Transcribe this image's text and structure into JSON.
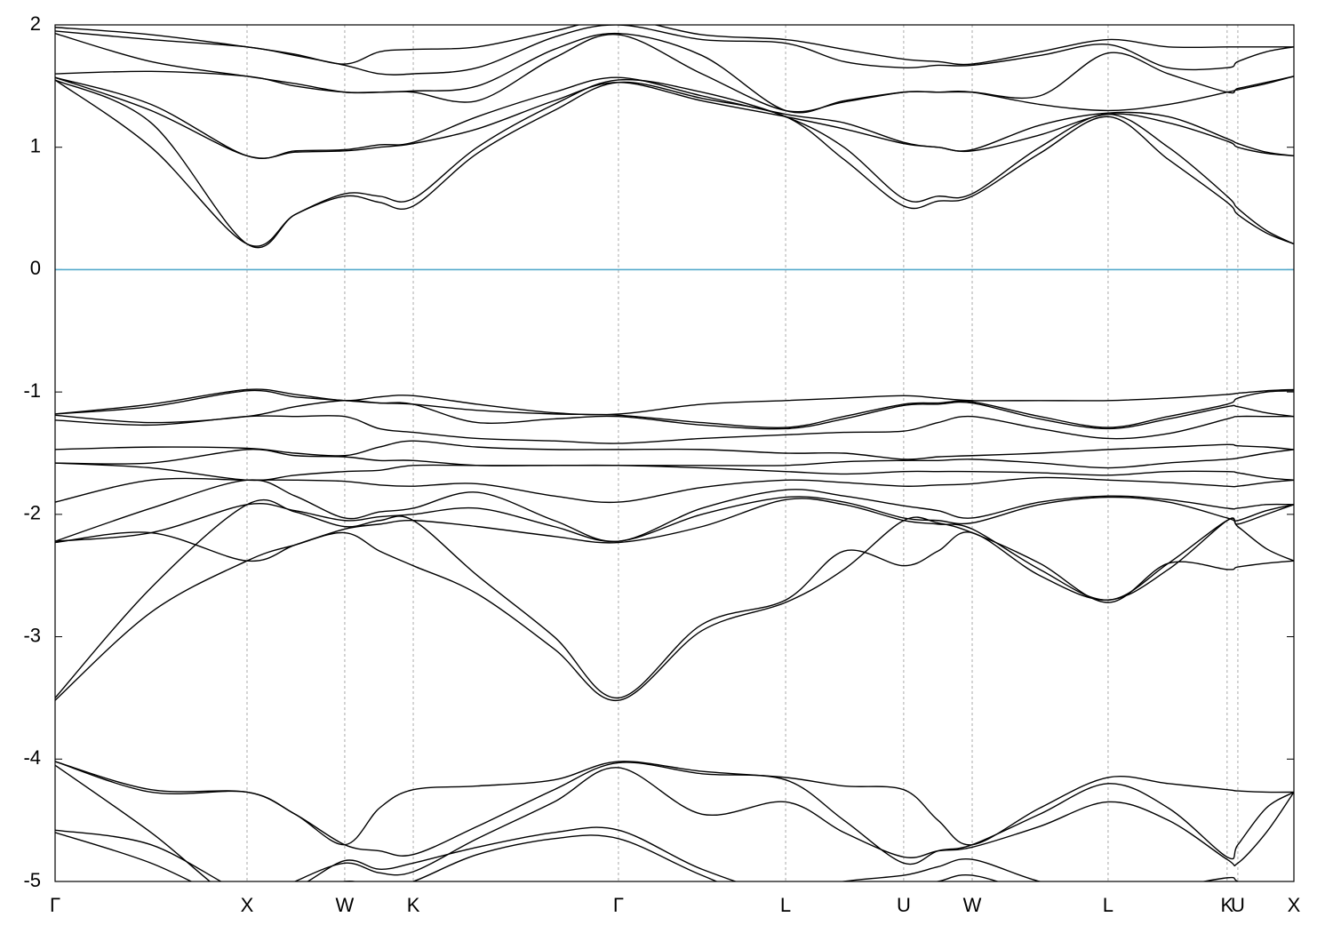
{
  "chart_data": {
    "type": "line",
    "color": "#000000",
    "x": [
      0,
      0.5,
      1.0,
      1.25,
      1.509,
      1.69,
      1.866,
      2.2,
      2.6,
      2.935,
      3.37,
      3.806,
      4.11,
      4.421,
      4.6,
      4.778,
      5.13,
      5.486,
      5.8,
      6.106,
      6.162,
      6.31,
      6.454
    ],
    "xlim": [
      0,
      6.454
    ],
    "xticks": [
      {
        "value": 0,
        "label": "Γ"
      },
      {
        "value": 1.0,
        "label": "X"
      },
      {
        "value": 1.509,
        "label": "W"
      },
      {
        "value": 1.866,
        "label": "K"
      },
      {
        "value": 2.935,
        "label": "Γ"
      },
      {
        "value": 3.806,
        "label": "L"
      },
      {
        "value": 4.421,
        "label": "U"
      },
      {
        "value": 4.778,
        "label": "W"
      },
      {
        "value": 5.486,
        "label": "L"
      },
      {
        "value": 6.106,
        "label": "K"
      },
      {
        "value": 6.162,
        "label": "U"
      },
      {
        "value": 6.454,
        "label": "X"
      }
    ],
    "x_grid": true,
    "ylim": [
      -5,
      2
    ],
    "yticks": [
      -5,
      -4,
      -3,
      -2,
      -1,
      0,
      1,
      2
    ],
    "zero_line": {
      "value": 0,
      "color": "#55aacc"
    },
    "series": [
      {
        "values": [
          1.55,
          1.0,
          0.21,
          0.45,
          0.6,
          0.55,
          0.52,
          0.95,
          1.3,
          1.53,
          1.4,
          1.25,
          0.9,
          0.52,
          0.56,
          0.6,
          0.95,
          1.25,
          0.9,
          0.55,
          0.45,
          0.3,
          0.21
        ]
      },
      {
        "values": [
          1.55,
          1.2,
          0.21,
          0.45,
          0.62,
          0.6,
          0.58,
          1.0,
          1.35,
          1.55,
          1.45,
          1.25,
          1.0,
          0.58,
          0.6,
          0.62,
          1.0,
          1.27,
          1.0,
          0.6,
          0.5,
          0.32,
          0.21
        ]
      },
      {
        "values": [
          1.57,
          1.3,
          0.93,
          0.96,
          0.97,
          1.0,
          1.03,
          1.15,
          1.38,
          1.53,
          1.38,
          1.25,
          1.15,
          1.03,
          1.0,
          0.97,
          1.1,
          1.27,
          1.2,
          1.05,
          1.0,
          0.95,
          0.93
        ]
      },
      {
        "values": [
          1.57,
          1.35,
          0.93,
          0.97,
          0.98,
          1.02,
          1.04,
          1.25,
          1.45,
          1.57,
          1.42,
          1.27,
          1.2,
          1.04,
          1.0,
          0.98,
          1.18,
          1.28,
          1.25,
          1.07,
          1.03,
          0.96,
          0.93
        ]
      },
      {
        "values": [
          1.6,
          1.62,
          1.58,
          1.5,
          1.45,
          1.45,
          1.45,
          1.38,
          1.73,
          1.92,
          1.6,
          1.3,
          1.37,
          1.45,
          1.45,
          1.45,
          1.35,
          1.3,
          1.35,
          1.45,
          1.47,
          1.52,
          1.58
        ]
      },
      {
        "values": [
          1.93,
          1.7,
          1.58,
          1.52,
          1.45,
          1.45,
          1.46,
          1.5,
          1.8,
          1.93,
          1.75,
          1.3,
          1.38,
          1.45,
          1.45,
          1.45,
          1.42,
          1.77,
          1.6,
          1.45,
          1.48,
          1.53,
          1.58
        ]
      },
      {
        "values": [
          1.95,
          1.88,
          1.82,
          1.75,
          1.67,
          1.6,
          1.6,
          1.65,
          1.9,
          2.0,
          1.88,
          1.85,
          1.7,
          1.65,
          1.67,
          1.67,
          1.75,
          1.84,
          1.65,
          1.65,
          1.7,
          1.78,
          1.82
        ]
      },
      {
        "values": [
          1.98,
          1.92,
          1.82,
          1.76,
          1.68,
          1.78,
          1.8,
          1.82,
          1.95,
          2.05,
          1.92,
          1.88,
          1.8,
          1.72,
          1.7,
          1.68,
          1.78,
          1.88,
          1.82,
          1.82,
          1.82,
          1.82,
          1.82
        ]
      },
      {
        "values": [
          -1.18,
          -1.1,
          -0.98,
          -1.02,
          -1.07,
          -1.04,
          -1.03,
          -1.1,
          -1.17,
          -1.18,
          -1.1,
          -1.07,
          -1.05,
          -1.03,
          -1.05,
          -1.07,
          -1.07,
          -1.07,
          -1.05,
          -1.02,
          -1.01,
          -0.99,
          -0.98
        ]
      },
      {
        "values": [
          -1.18,
          -1.12,
          -0.99,
          -1.04,
          -1.07,
          -1.09,
          -1.1,
          -1.15,
          -1.18,
          -1.19,
          -1.25,
          -1.29,
          -1.2,
          -1.1,
          -1.09,
          -1.08,
          -1.2,
          -1.29,
          -1.2,
          -1.1,
          -1.05,
          -1.0,
          -0.99
        ]
      },
      {
        "values": [
          -1.19,
          -1.25,
          -1.2,
          -1.12,
          -1.07,
          -1.09,
          -1.1,
          -1.25,
          -1.22,
          -1.2,
          -1.27,
          -1.3,
          -1.22,
          -1.11,
          -1.1,
          -1.09,
          -1.22,
          -1.3,
          -1.22,
          -1.12,
          -1.12,
          -1.17,
          -1.2
        ]
      },
      {
        "values": [
          -1.23,
          -1.27,
          -1.2,
          -1.2,
          -1.2,
          -1.3,
          -1.33,
          -1.38,
          -1.4,
          -1.42,
          -1.38,
          -1.35,
          -1.33,
          -1.32,
          -1.25,
          -1.2,
          -1.3,
          -1.38,
          -1.34,
          -1.22,
          -1.2,
          -1.2,
          -1.2
        ]
      },
      {
        "values": [
          -1.47,
          -1.45,
          -1.46,
          -1.5,
          -1.52,
          -1.45,
          -1.4,
          -1.45,
          -1.47,
          -1.47,
          -1.47,
          -1.5,
          -1.5,
          -1.55,
          -1.53,
          -1.52,
          -1.5,
          -1.47,
          -1.45,
          -1.43,
          -1.44,
          -1.45,
          -1.47
        ]
      },
      {
        "values": [
          -1.58,
          -1.58,
          -1.47,
          -1.52,
          -1.53,
          -1.56,
          -1.56,
          -1.6,
          -1.6,
          -1.6,
          -1.6,
          -1.6,
          -1.57,
          -1.56,
          -1.56,
          -1.55,
          -1.58,
          -1.62,
          -1.58,
          -1.55,
          -1.54,
          -1.5,
          -1.47
        ]
      },
      {
        "values": [
          -1.58,
          -1.62,
          -1.72,
          -1.68,
          -1.65,
          -1.64,
          -1.6,
          -1.6,
          -1.6,
          -1.6,
          -1.62,
          -1.65,
          -1.67,
          -1.65,
          -1.65,
          -1.65,
          -1.66,
          -1.68,
          -1.65,
          -1.65,
          -1.66,
          -1.7,
          -1.72
        ]
      },
      {
        "values": [
          -1.9,
          -1.72,
          -1.72,
          -1.72,
          -1.73,
          -1.76,
          -1.77,
          -1.75,
          -1.85,
          -1.9,
          -1.78,
          -1.72,
          -1.74,
          -1.77,
          -1.76,
          -1.75,
          -1.7,
          -1.72,
          -1.74,
          -1.77,
          -1.77,
          -1.74,
          -1.72
        ]
      },
      {
        "values": [
          -2.22,
          -1.95,
          -1.72,
          -1.85,
          -2.03,
          -1.98,
          -1.95,
          -1.82,
          -2.05,
          -2.22,
          -1.95,
          -1.8,
          -1.85,
          -1.93,
          -1.97,
          -2.03,
          -1.9,
          -1.85,
          -1.88,
          -1.95,
          -1.95,
          -1.92,
          -1.92
        ]
      },
      {
        "values": [
          -2.22,
          -2.15,
          -1.92,
          -1.97,
          -2.05,
          -2.02,
          -2.0,
          -1.95,
          -2.1,
          -2.22,
          -2.0,
          -1.86,
          -1.9,
          -2.03,
          -2.05,
          -2.07,
          -1.92,
          -1.86,
          -1.9,
          -2.03,
          -2.05,
          -1.97,
          -1.92
        ]
      },
      {
        "values": [
          -2.23,
          -2.15,
          -2.38,
          -2.25,
          -2.12,
          -2.08,
          -2.05,
          -2.1,
          -2.18,
          -2.23,
          -2.1,
          -1.88,
          -1.92,
          -2.05,
          -2.08,
          -2.12,
          -2.45,
          -2.7,
          -2.4,
          -2.05,
          -2.1,
          -2.28,
          -2.38
        ]
      },
      {
        "values": [
          -3.52,
          -2.8,
          -2.38,
          -2.25,
          -2.15,
          -2.3,
          -2.42,
          -2.65,
          -3.1,
          -3.52,
          -2.95,
          -2.72,
          -2.45,
          -2.05,
          -2.07,
          -2.15,
          -2.4,
          -2.72,
          -2.4,
          -2.45,
          -2.43,
          -2.4,
          -2.38
        ]
      },
      {
        "values": [
          -3.5,
          -2.6,
          -1.92,
          -1.98,
          -2.1,
          -2.05,
          -2.05,
          -2.5,
          -3.0,
          -3.5,
          -2.9,
          -2.7,
          -2.3,
          -2.42,
          -2.3,
          -2.15,
          -2.5,
          -2.7,
          -2.45,
          -2.05,
          -2.08,
          -2.0,
          -1.92
        ]
      },
      {
        "values": [
          -4.02,
          -4.25,
          -4.27,
          -4.45,
          -4.7,
          -4.4,
          -4.25,
          -4.22,
          -4.17,
          -4.02,
          -4.1,
          -4.15,
          -4.22,
          -4.25,
          -4.5,
          -4.7,
          -4.4,
          -4.15,
          -4.2,
          -4.25,
          -4.26,
          -4.27,
          -4.27
        ]
      },
      {
        "values": [
          -4.02,
          -4.27,
          -4.27,
          -4.45,
          -4.7,
          -4.75,
          -4.78,
          -4.55,
          -4.25,
          -4.03,
          -4.12,
          -4.17,
          -4.5,
          -4.85,
          -4.75,
          -4.7,
          -4.45,
          -4.2,
          -4.4,
          -4.8,
          -4.7,
          -4.4,
          -4.27
        ]
      },
      {
        "values": [
          -4.05,
          -4.6,
          -5.2,
          -5.0,
          -4.85,
          -4.93,
          -4.92,
          -4.65,
          -4.35,
          -4.07,
          -4.45,
          -4.35,
          -4.6,
          -4.8,
          -4.75,
          -4.72,
          -4.55,
          -4.35,
          -4.5,
          -4.82,
          -4.85,
          -4.6,
          -4.27
        ]
      },
      {
        "values": [
          -4.58,
          -4.7,
          -5.1,
          -5.05,
          -4.83,
          -4.9,
          -4.85,
          -4.72,
          -4.6,
          -4.58,
          -4.9,
          -5.1,
          -5.0,
          -4.95,
          -4.88,
          -4.82,
          -5.0,
          -5.1,
          -5.05,
          -4.97,
          -5.0,
          -5.1,
          -5.1
        ]
      },
      {
        "values": [
          -4.6,
          -4.85,
          -5.2,
          -5.15,
          -5.0,
          -5.05,
          -5.0,
          -4.78,
          -4.65,
          -4.65,
          -4.95,
          -5.2,
          -5.1,
          -5.05,
          -5.0,
          -4.95,
          -5.1,
          -5.2,
          -5.15,
          -5.05,
          -5.1,
          -5.15,
          -5.2
        ]
      }
    ]
  }
}
